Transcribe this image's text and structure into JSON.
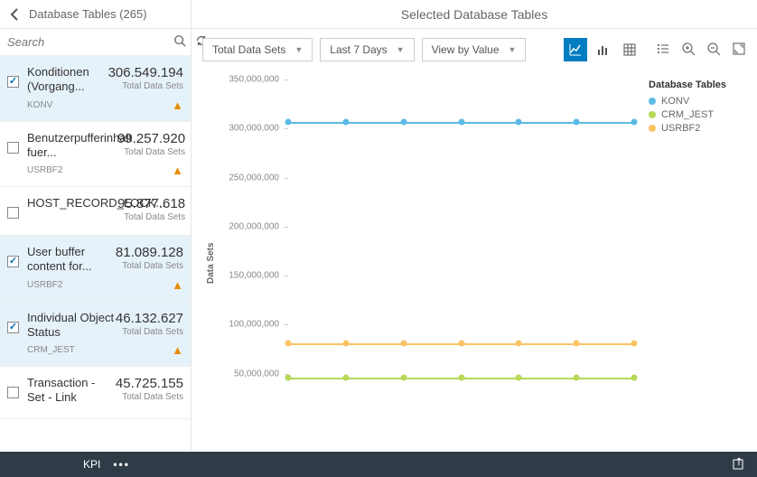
{
  "header": {
    "left_title": "Database Tables (265)",
    "right_title": "Selected Database Tables"
  },
  "search": {
    "placeholder": "Search"
  },
  "list": {
    "sub_label": "Total Data Sets",
    "items": [
      {
        "name": "Konditionen (Vorgang...",
        "value": "306.549.194",
        "code": "KONV",
        "checked": true,
        "warn": true
      },
      {
        "name": "Benutzerpufferinhalt fuer...",
        "value": "99.257.920",
        "code": "USRBF2",
        "checked": false,
        "warn": true
      },
      {
        "name": "HOST_RECORD_LOCK...",
        "value": "95.877.618",
        "code": "",
        "checked": false,
        "warn": false
      },
      {
        "name": "User buffer content for...",
        "value": "81.089.128",
        "code": "USRBF2",
        "checked": true,
        "warn": true
      },
      {
        "name": "Individual Object Status",
        "value": "46.132.627",
        "code": "CRM_JEST",
        "checked": true,
        "warn": true
      },
      {
        "name": "Transaction - Set - Link",
        "value": "45.725.155",
        "code": "",
        "checked": false,
        "warn": false
      }
    ]
  },
  "toolbar": {
    "dd1": "Total Data Sets",
    "dd2": "Last 7 Days",
    "dd3": "View by Value"
  },
  "chart": {
    "type": "line",
    "ylabel": "Data Sets",
    "ylim": [
      0,
      350000000
    ],
    "ytick_step": 50000000,
    "yticks": [
      {
        "v": 50000000,
        "label": "50,000,000"
      },
      {
        "v": 100000000,
        "label": "100,000,000"
      },
      {
        "v": 150000000,
        "label": "150,000,000"
      },
      {
        "v": 200000000,
        "label": "200,000,000"
      },
      {
        "v": 250000000,
        "label": "250,000,000"
      },
      {
        "v": 300000000,
        "label": "300,000,000"
      },
      {
        "v": 350000000,
        "label": "350,000,000"
      }
    ],
    "x_count": 7,
    "legend_title": "Database Tables",
    "series": [
      {
        "name": "KONV",
        "color": "#5cbae6",
        "value": 306549194
      },
      {
        "name": "CRM_JEST",
        "color": "#b6d957",
        "value": 46132627
      },
      {
        "name": "USRBF2",
        "color": "#fac364",
        "value": 81089128
      }
    ],
    "marker_size": 7,
    "line_width": 2,
    "background_color": "#ffffff"
  },
  "footer": {
    "label": "KPI"
  }
}
